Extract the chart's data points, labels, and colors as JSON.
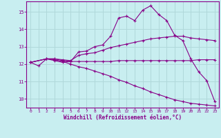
{
  "xlabel": "Windchill (Refroidissement éolien,°C)",
  "background_color": "#c8eef0",
  "grid_color": "#b0d8da",
  "line_color": "#880088",
  "xlim": [
    -0.5,
    23.5
  ],
  "ylim": [
    9.5,
    15.6
  ],
  "xticks": [
    0,
    1,
    2,
    3,
    4,
    5,
    6,
    7,
    8,
    9,
    10,
    11,
    12,
    13,
    14,
    15,
    16,
    17,
    18,
    19,
    20,
    21,
    22,
    23
  ],
  "yticks": [
    10,
    11,
    12,
    13,
    14,
    15
  ],
  "lines": [
    {
      "x": [
        0,
        1,
        2,
        3,
        4,
        5,
        6,
        7,
        8,
        9,
        10,
        11,
        12,
        13,
        14,
        15,
        16,
        17,
        18,
        19,
        20,
        21,
        22,
        23
      ],
      "y": [
        12.1,
        11.9,
        12.3,
        12.2,
        12.1,
        12.15,
        12.7,
        12.75,
        13.0,
        13.1,
        13.6,
        14.65,
        14.75,
        14.5,
        15.1,
        15.35,
        14.85,
        14.5,
        13.65,
        13.35,
        12.3,
        11.55,
        11.05,
        9.85
      ]
    },
    {
      "x": [
        0,
        2,
        3,
        4,
        5,
        6,
        7,
        8,
        9,
        10,
        11,
        12,
        13,
        14,
        15,
        16,
        17,
        18,
        19,
        20,
        21,
        22,
        23
      ],
      "y": [
        12.1,
        12.3,
        12.3,
        12.25,
        12.2,
        12.5,
        12.6,
        12.65,
        12.8,
        12.95,
        13.05,
        13.15,
        13.25,
        13.35,
        13.45,
        13.5,
        13.55,
        13.6,
        13.6,
        13.5,
        13.45,
        13.4,
        13.35
      ]
    },
    {
      "x": [
        0,
        2,
        3,
        4,
        5,
        6,
        7,
        8,
        9,
        10,
        11,
        12,
        13,
        14,
        15,
        16,
        17,
        18,
        19,
        20,
        21,
        22,
        23
      ],
      "y": [
        12.1,
        12.3,
        12.3,
        12.2,
        12.15,
        12.15,
        12.15,
        12.15,
        12.15,
        12.15,
        12.2,
        12.2,
        12.2,
        12.2,
        12.2,
        12.2,
        12.2,
        12.2,
        12.2,
        12.2,
        12.25,
        12.25,
        12.25
      ]
    },
    {
      "x": [
        0,
        2,
        3,
        4,
        5,
        6,
        7,
        8,
        9,
        10,
        11,
        12,
        13,
        14,
        15,
        16,
        17,
        18,
        19,
        20,
        21,
        22,
        23
      ],
      "y": [
        12.1,
        12.3,
        12.25,
        12.15,
        12.0,
        11.85,
        11.75,
        11.6,
        11.45,
        11.3,
        11.1,
        10.95,
        10.75,
        10.6,
        10.4,
        10.25,
        10.1,
        9.95,
        9.85,
        9.75,
        9.7,
        9.65,
        9.6
      ]
    }
  ]
}
